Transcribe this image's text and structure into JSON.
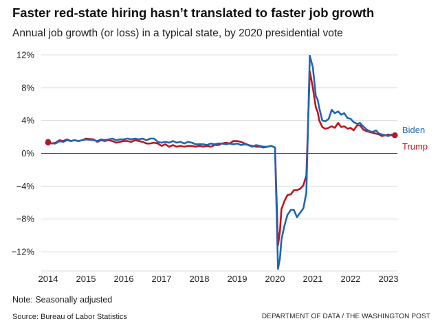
{
  "title": "Faster red-state hiring hasn’t translated to faster job growth",
  "subtitle": "Annual job growth (or loss) in a typical state, by 2020 presidential vote",
  "note": "Note: Seasonally adjusted",
  "source": "Source: Bureau of Labor Statistics",
  "credit": "DEPARTMENT OF DATA / THE WASHINGTON POST",
  "chart_data": {
    "type": "line",
    "title": "Faster red-state hiring hasn’t translated to faster job growth",
    "subtitle": "Annual job growth (or loss) in a typical state, by 2020 presidential vote",
    "xlabel": "",
    "ylabel": "",
    "xlim": [
      2014,
      2023.3
    ],
    "ylim": [
      -14.5,
      12.5
    ],
    "x_ticks": [
      2014,
      2015,
      2016,
      2017,
      2018,
      2019,
      2020,
      2021,
      2022,
      2023
    ],
    "x_tick_labels": [
      "2014",
      "2015",
      "2016",
      "2017",
      "2018",
      "2019",
      "2020",
      "2021",
      "2022",
      "2023"
    ],
    "y_ticks": [
      12,
      8,
      4,
      0,
      -4,
      -8,
      -12
    ],
    "y_tick_labels": [
      "12%",
      "8%",
      "4%",
      "0%",
      "−4%",
      "−8%",
      "−12%"
    ],
    "grid": "horizontal",
    "series": [
      {
        "name": "Biden",
        "color": "#1f66b3",
        "x": [
          2014.0,
          2014.1,
          2014.2,
          2014.3,
          2014.4,
          2014.5,
          2014.6,
          2014.7,
          2014.8,
          2014.9,
          2015.0,
          2015.2,
          2015.3,
          2015.4,
          2015.5,
          2015.6,
          2015.7,
          2015.8,
          2015.9,
          2016.0,
          2016.1,
          2016.2,
          2016.3,
          2016.4,
          2016.5,
          2016.6,
          2016.7,
          2016.8,
          2016.9,
          2017.0,
          2017.1,
          2017.2,
          2017.3,
          2017.4,
          2017.5,
          2017.6,
          2017.7,
          2017.8,
          2017.9,
          2018.0,
          2018.1,
          2018.2,
          2018.3,
          2018.4,
          2018.5,
          2018.6,
          2018.7,
          2018.8,
          2018.9,
          2019.0,
          2019.1,
          2019.2,
          2019.3,
          2019.4,
          2019.5,
          2019.6,
          2019.7,
          2019.8,
          2019.9,
          2020.0,
          2020.08,
          2020.13,
          2020.17,
          2020.25,
          2020.33,
          2020.42,
          2020.5,
          2020.58,
          2020.67,
          2020.75,
          2020.83,
          2020.92,
          2021.0,
          2021.08,
          2021.13,
          2021.17,
          2021.25,
          2021.33,
          2021.42,
          2021.5,
          2021.58,
          2021.67,
          2021.75,
          2021.83,
          2021.92,
          2022.0,
          2022.08,
          2022.17,
          2022.25,
          2022.33,
          2022.42,
          2022.5,
          2022.58,
          2022.67,
          2022.75,
          2022.83,
          2022.92,
          2023.0,
          2023.08,
          2023.17
        ],
        "values": [
          1.4,
          1.2,
          1.2,
          1.5,
          1.4,
          1.6,
          1.5,
          1.6,
          1.5,
          1.6,
          1.7,
          1.6,
          1.5,
          1.7,
          1.6,
          1.7,
          1.8,
          1.6,
          1.7,
          1.7,
          1.8,
          1.7,
          1.8,
          1.7,
          1.8,
          1.6,
          1.8,
          1.8,
          1.4,
          1.3,
          1.4,
          1.3,
          1.5,
          1.3,
          1.4,
          1.2,
          1.4,
          1.3,
          1.1,
          1.1,
          1.1,
          1.0,
          1.2,
          1.1,
          1.2,
          1.2,
          1.1,
          1.2,
          1.1,
          1.2,
          1.0,
          1.1,
          1.0,
          0.8,
          1.0,
          0.9,
          0.8,
          0.8,
          0.9,
          0.7,
          -14.1,
          -12.8,
          -10.5,
          -8.8,
          -7.5,
          -6.9,
          -6.9,
          -7.8,
          -7.2,
          -6.7,
          -4.8,
          11.9,
          10.5,
          7.0,
          6.5,
          5.5,
          4.0,
          3.9,
          4.2,
          5.3,
          4.9,
          5.1,
          4.7,
          4.9,
          4.3,
          4.2,
          3.8,
          3.6,
          3.7,
          3.3,
          2.9,
          2.7,
          2.6,
          2.8,
          2.4,
          2.3,
          2.2,
          2.1,
          2.3,
          2.2
        ],
        "end_label": "Biden"
      },
      {
        "name": "Trump",
        "color": "#c0141b",
        "x": [
          2014.0,
          2014.1,
          2014.2,
          2014.3,
          2014.4,
          2014.5,
          2014.6,
          2014.7,
          2014.8,
          2014.9,
          2015.0,
          2015.2,
          2015.3,
          2015.4,
          2015.5,
          2015.6,
          2015.7,
          2015.8,
          2015.9,
          2016.0,
          2016.1,
          2016.2,
          2016.3,
          2016.4,
          2016.5,
          2016.6,
          2016.7,
          2016.8,
          2016.9,
          2017.0,
          2017.1,
          2017.2,
          2017.3,
          2017.4,
          2017.5,
          2017.6,
          2017.7,
          2017.8,
          2017.9,
          2018.0,
          2018.1,
          2018.2,
          2018.3,
          2018.4,
          2018.5,
          2018.6,
          2018.7,
          2018.8,
          2018.9,
          2019.0,
          2019.1,
          2019.2,
          2019.3,
          2019.4,
          2019.5,
          2019.6,
          2019.7,
          2019.8,
          2019.9,
          2020.0,
          2020.08,
          2020.13,
          2020.17,
          2020.25,
          2020.33,
          2020.42,
          2020.5,
          2020.58,
          2020.67,
          2020.75,
          2020.83,
          2020.92,
          2021.0,
          2021.08,
          2021.13,
          2021.17,
          2021.25,
          2021.33,
          2021.42,
          2021.5,
          2021.58,
          2021.67,
          2021.75,
          2021.83,
          2021.92,
          2022.0,
          2022.08,
          2022.17,
          2022.25,
          2022.33,
          2022.42,
          2022.5,
          2022.58,
          2022.67,
          2022.75,
          2022.83,
          2022.92,
          2023.0,
          2023.08,
          2023.17
        ],
        "values": [
          1.3,
          1.2,
          1.3,
          1.6,
          1.5,
          1.7,
          1.5,
          1.6,
          1.5,
          1.6,
          1.8,
          1.7,
          1.4,
          1.6,
          1.5,
          1.6,
          1.5,
          1.3,
          1.4,
          1.5,
          1.5,
          1.4,
          1.6,
          1.5,
          1.4,
          1.2,
          1.2,
          1.3,
          1.2,
          0.9,
          1.1,
          0.8,
          1.0,
          0.8,
          0.9,
          0.8,
          0.9,
          0.9,
          0.8,
          0.9,
          0.8,
          0.9,
          0.8,
          1.0,
          1.0,
          1.2,
          1.3,
          1.2,
          1.5,
          1.5,
          1.4,
          1.2,
          1.0,
          0.9,
          0.8,
          0.8,
          0.7,
          0.8,
          0.9,
          0.7,
          -11.2,
          -9.5,
          -6.8,
          -5.8,
          -5.1,
          -5.0,
          -4.5,
          -4.5,
          -4.3,
          -3.9,
          -2.7,
          10.0,
          8.0,
          5.6,
          5.0,
          4.0,
          3.2,
          3.0,
          3.1,
          3.3,
          3.1,
          3.7,
          3.2,
          3.3,
          3.0,
          3.1,
          2.8,
          3.4,
          3.4,
          2.9,
          2.7,
          2.6,
          2.5,
          2.4,
          2.3,
          2.1,
          2.2,
          2.3,
          2.2,
          2.2
        ],
        "end_label": "Trump"
      }
    ]
  }
}
